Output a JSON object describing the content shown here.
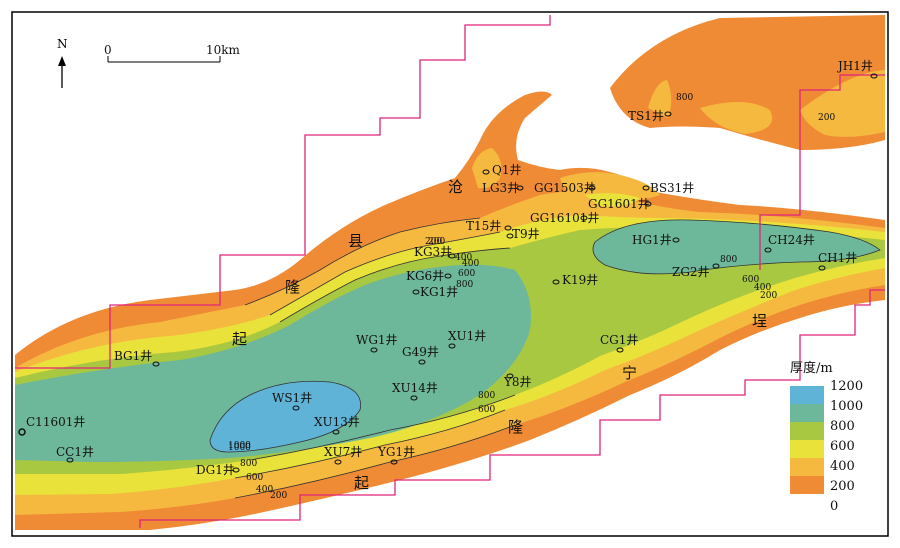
{
  "north_label": "N",
  "scale": {
    "start": "0",
    "end": "10km"
  },
  "colors": {
    "c0": "#ef8a35",
    "c200": "#f6b93f",
    "c400": "#e8e23a",
    "c600": "#a9c842",
    "c800": "#6db79a",
    "c1000": "#5fb3d7",
    "boundary": "#e0247a"
  },
  "legend": {
    "title": "厚度/m",
    "items": [
      {
        "label": "1200",
        "color": "#5fb3d7"
      },
      {
        "label": "1000",
        "color": "#6db79a"
      },
      {
        "label": "800",
        "color": "#a9c842"
      },
      {
        "label": "600",
        "color": "#e8e23a"
      },
      {
        "label": "400",
        "color": "#f6b93f"
      },
      {
        "label": "200",
        "color": "#ef8a35"
      },
      {
        "label": "0",
        "color": ""
      }
    ]
  },
  "regions": [
    "沧",
    "县",
    "隆",
    "起",
    "埕",
    "宁",
    "隆",
    "起"
  ],
  "contours": [
    "200",
    "400",
    "600",
    "800",
    "1000",
    "800",
    "600",
    "400",
    "200",
    "200",
    "400",
    "600",
    "800",
    "400",
    "600",
    "800",
    "200",
    "200",
    "1000",
    "800"
  ],
  "wells": [
    "JH1井",
    "TS1井",
    "Q1井",
    "LG3井",
    "GG1503井",
    "BS31井",
    "GG1601井",
    "GG16101井",
    "T15井",
    "T9井",
    "HG1井",
    "CH24井",
    "CH1井",
    "ZG2井",
    "KG3井",
    "KG6井",
    "KG1井",
    "K19井",
    "WG1井",
    "XU1井",
    "G49井",
    "CG1井",
    "BG1井",
    "Y8井",
    "XU14井",
    "WS1井",
    "XU13井",
    "C11601井",
    "CC1井",
    "XU7井",
    "YG1井",
    "DG1井"
  ]
}
